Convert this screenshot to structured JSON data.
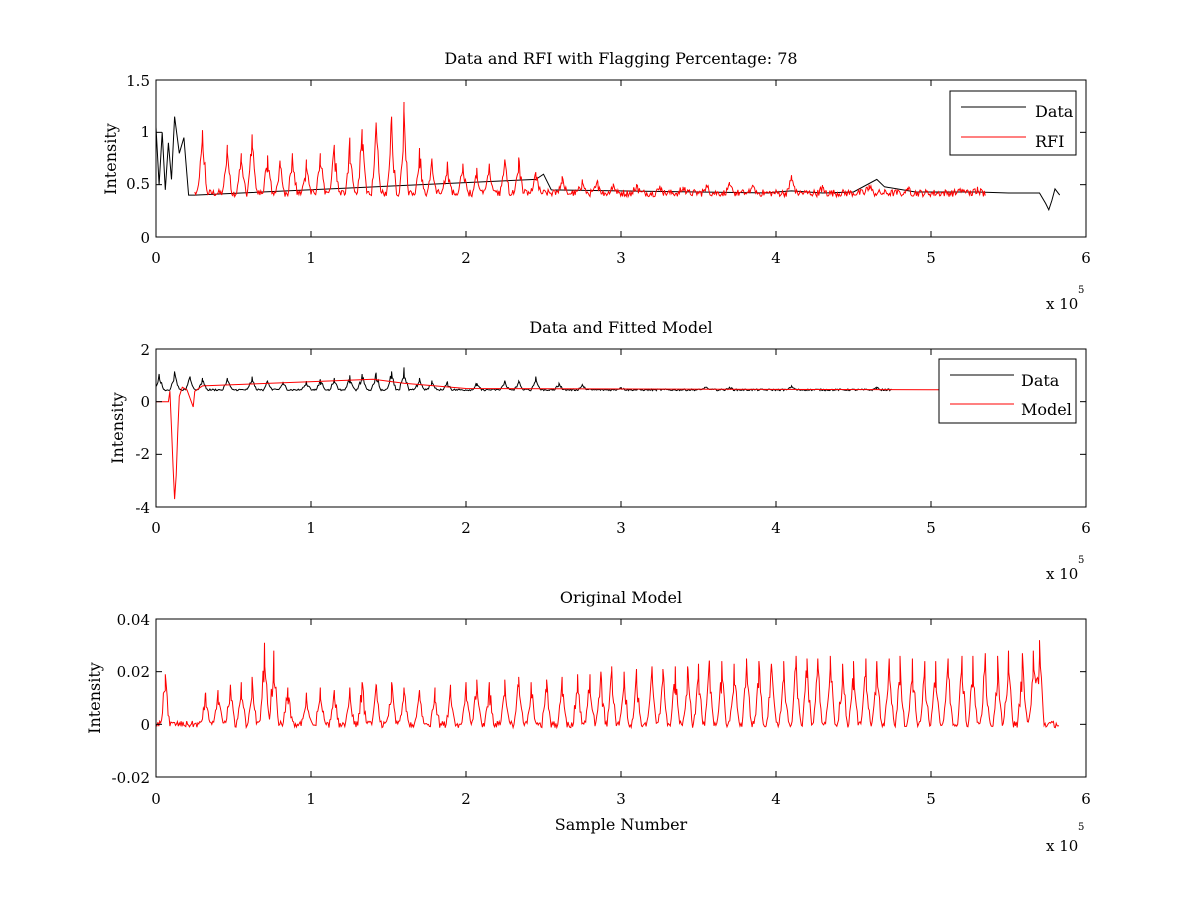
{
  "chart_data": [
    {
      "type": "line",
      "title": "Data and RFI with Flagging Percentage: 78",
      "xlabel": "",
      "ylabel": "Intensity",
      "xlim": [
        0,
        6
      ],
      "ylim": [
        0,
        1.5
      ],
      "x_ticks": [
        "0",
        "1",
        "2",
        "3",
        "4",
        "5",
        "6"
      ],
      "y_ticks": [
        "0",
        "0.5",
        "1",
        "1.5"
      ],
      "x_exponent": {
        "base": "x 10",
        "power": "5"
      },
      "legend": {
        "position": "top-right",
        "entries": [
          {
            "name": "Data",
            "color": "#000000"
          },
          {
            "name": "RFI",
            "color": "#ff0000"
          }
        ]
      },
      "series": [
        {
          "name": "Data",
          "color": "#000000",
          "baseline": 0.42,
          "x": [
            0.0,
            0.02,
            0.04,
            0.06,
            0.08,
            0.1,
            0.12,
            0.15,
            0.18,
            0.21,
            0.25,
            2.45,
            2.5,
            2.55,
            3.95,
            4.0,
            4.1,
            4.3,
            4.5,
            4.65,
            4.7,
            4.9,
            5.3,
            5.5,
            5.7,
            5.74,
            5.76,
            5.78,
            5.8,
            5.83
          ],
          "values": [
            1.05,
            0.5,
            1.0,
            0.45,
            0.9,
            0.55,
            1.15,
            0.8,
            0.95,
            0.4,
            0.4,
            0.55,
            0.6,
            0.45,
            0.42,
            0.43,
            0.44,
            0.42,
            0.43,
            0.55,
            0.48,
            0.43,
            0.43,
            0.42,
            0.42,
            0.32,
            0.26,
            0.35,
            0.46,
            0.4
          ]
        },
        {
          "name": "RFI",
          "color": "#ff0000",
          "baseline": 0.42,
          "x_range": [
            0.25,
            5.35
          ],
          "peaks": [
            [
              0.3,
              1.02
            ],
            [
              0.46,
              0.88
            ],
            [
              0.55,
              0.8
            ],
            [
              0.62,
              0.98
            ],
            [
              0.72,
              0.78
            ],
            [
              0.8,
              0.73
            ],
            [
              0.88,
              0.8
            ],
            [
              0.97,
              0.74
            ],
            [
              1.06,
              0.8
            ],
            [
              1.15,
              0.88
            ],
            [
              1.25,
              0.95
            ],
            [
              1.33,
              1.03
            ],
            [
              1.42,
              1.08
            ],
            [
              1.52,
              1.15
            ],
            [
              1.6,
              1.29
            ],
            [
              1.7,
              0.85
            ],
            [
              1.78,
              0.75
            ],
            [
              1.88,
              0.72
            ],
            [
              1.98,
              0.7
            ],
            [
              2.07,
              0.66
            ],
            [
              2.15,
              0.7
            ],
            [
              2.25,
              0.74
            ],
            [
              2.34,
              0.76
            ],
            [
              2.45,
              0.62
            ],
            [
              2.62,
              0.58
            ],
            [
              2.75,
              0.55
            ],
            [
              2.85,
              0.53
            ],
            [
              2.95,
              0.51
            ],
            [
              3.1,
              0.5
            ],
            [
              3.25,
              0.49
            ],
            [
              3.4,
              0.48
            ],
            [
              3.55,
              0.5
            ],
            [
              3.7,
              0.5
            ],
            [
              3.85,
              0.49
            ],
            [
              4.1,
              0.59
            ],
            [
              4.3,
              0.48
            ],
            [
              4.6,
              0.5
            ],
            [
              4.85,
              0.47
            ],
            [
              5.2,
              0.46
            ],
            [
              5.3,
              0.48
            ]
          ]
        }
      ]
    },
    {
      "type": "line",
      "title": "Data and Fitted Model",
      "xlabel": "",
      "ylabel": "Intensity",
      "xlim": [
        0,
        6
      ],
      "ylim": [
        -4,
        2
      ],
      "x_ticks": [
        "0",
        "1",
        "2",
        "3",
        "4",
        "5",
        "6"
      ],
      "y_ticks": [
        "-4",
        "-2",
        "0",
        "2"
      ],
      "x_exponent": {
        "base": "x 10",
        "power": "5"
      },
      "legend": {
        "position": "top-right",
        "entries": [
          {
            "name": "Data",
            "color": "#000000"
          },
          {
            "name": "Model",
            "color": "#ff0000"
          }
        ]
      },
      "series": [
        {
          "name": "Data",
          "color": "#000000",
          "baseline": 0.45,
          "x_range": [
            0.0,
            4.75
          ],
          "peaks": [
            [
              0.02,
              1.05
            ],
            [
              0.12,
              1.15
            ],
            [
              0.22,
              0.95
            ],
            [
              0.3,
              0.9
            ],
            [
              0.46,
              0.9
            ],
            [
              0.62,
              0.95
            ],
            [
              0.72,
              0.8
            ],
            [
              0.82,
              0.75
            ],
            [
              0.97,
              0.78
            ],
            [
              1.06,
              0.85
            ],
            [
              1.15,
              0.9
            ],
            [
              1.25,
              1.0
            ],
            [
              1.33,
              1.05
            ],
            [
              1.42,
              1.1
            ],
            [
              1.52,
              1.15
            ],
            [
              1.6,
              1.3
            ],
            [
              1.7,
              0.9
            ],
            [
              1.78,
              0.8
            ],
            [
              1.88,
              0.75
            ],
            [
              2.07,
              0.7
            ],
            [
              2.25,
              0.8
            ],
            [
              2.34,
              0.78
            ],
            [
              2.45,
              0.95
            ],
            [
              2.6,
              0.7
            ],
            [
              2.75,
              0.65
            ],
            [
              3.0,
              0.55
            ],
            [
              3.55,
              0.55
            ],
            [
              3.7,
              0.55
            ],
            [
              4.1,
              0.6
            ],
            [
              4.65,
              0.55
            ]
          ]
        },
        {
          "name": "Model",
          "color": "#ff0000",
          "baseline": 0.45,
          "x": [
            0.0,
            0.08,
            0.09,
            0.1,
            0.11,
            0.12,
            0.13,
            0.14,
            0.15,
            0.17,
            0.2,
            0.24,
            0.25,
            0.3,
            1.4,
            1.6,
            2.0,
            5.0,
            5.83
          ],
          "values": [
            0.0,
            0.0,
            0.4,
            -1.0,
            -2.5,
            -3.7,
            -2.8,
            -1.2,
            0.2,
            0.55,
            0.45,
            -0.2,
            0.4,
            0.6,
            0.85,
            0.7,
            0.5,
            0.45,
            0.45
          ]
        }
      ]
    },
    {
      "type": "line",
      "title": "Original Model",
      "xlabel": "Sample Number",
      "ylabel": "Intensity",
      "xlim": [
        0,
        6
      ],
      "ylim": [
        -0.02,
        0.04
      ],
      "x_ticks": [
        "0",
        "1",
        "2",
        "3",
        "4",
        "5",
        "6"
      ],
      "y_ticks": [
        "-0.02",
        "0",
        "0.02",
        "0.04"
      ],
      "x_exponent": {
        "base": "x 10",
        "power": "5"
      },
      "series": [
        {
          "name": "",
          "color": "#ff0000",
          "baseline": 0.0,
          "x_range": [
            0.0,
            5.83
          ],
          "peaks": [
            [
              0.06,
              0.019
            ],
            [
              0.32,
              0.012
            ],
            [
              0.4,
              0.013
            ],
            [
              0.48,
              0.015
            ],
            [
              0.55,
              0.016
            ],
            [
              0.62,
              0.018
            ],
            [
              0.7,
              0.031
            ],
            [
              0.76,
              0.028
            ],
            [
              0.85,
              0.014
            ],
            [
              0.97,
              0.012
            ],
            [
              1.06,
              0.014
            ],
            [
              1.15,
              0.013
            ],
            [
              1.25,
              0.014
            ],
            [
              1.33,
              0.016
            ],
            [
              1.42,
              0.015
            ],
            [
              1.52,
              0.016
            ],
            [
              1.6,
              0.014
            ],
            [
              1.7,
              0.013
            ],
            [
              1.8,
              0.014
            ],
            [
              1.9,
              0.015
            ],
            [
              2.0,
              0.016
            ],
            [
              2.07,
              0.017
            ],
            [
              2.15,
              0.016
            ],
            [
              2.25,
              0.017
            ],
            [
              2.34,
              0.018
            ],
            [
              2.42,
              0.016
            ],
            [
              2.52,
              0.017
            ],
            [
              2.62,
              0.018
            ],
            [
              2.72,
              0.019
            ],
            [
              2.8,
              0.019
            ],
            [
              2.87,
              0.02
            ],
            [
              2.94,
              0.022
            ],
            [
              3.02,
              0.02
            ],
            [
              3.1,
              0.021
            ],
            [
              3.2,
              0.022
            ],
            [
              3.27,
              0.021
            ],
            [
              3.35,
              0.022
            ],
            [
              3.43,
              0.022
            ],
            [
              3.5,
              0.023
            ],
            [
              3.57,
              0.024
            ],
            [
              3.65,
              0.024
            ],
            [
              3.73,
              0.023
            ],
            [
              3.81,
              0.025
            ],
            [
              3.89,
              0.024
            ],
            [
              3.97,
              0.023
            ],
            [
              4.05,
              0.024
            ],
            [
              4.13,
              0.026
            ],
            [
              4.2,
              0.025
            ],
            [
              4.27,
              0.025
            ],
            [
              4.35,
              0.026
            ],
            [
              4.43,
              0.023
            ],
            [
              4.5,
              0.024
            ],
            [
              4.58,
              0.025
            ],
            [
              4.65,
              0.024
            ],
            [
              4.73,
              0.025
            ],
            [
              4.8,
              0.026
            ],
            [
              4.88,
              0.025
            ],
            [
              4.96,
              0.024
            ],
            [
              5.03,
              0.024
            ],
            [
              5.11,
              0.025
            ],
            [
              5.2,
              0.026
            ],
            [
              5.27,
              0.026
            ],
            [
              5.35,
              0.027
            ],
            [
              5.43,
              0.026
            ],
            [
              5.5,
              0.028
            ],
            [
              5.59,
              0.027
            ],
            [
              5.66,
              0.028
            ],
            [
              5.7,
              0.032
            ]
          ]
        }
      ]
    }
  ]
}
